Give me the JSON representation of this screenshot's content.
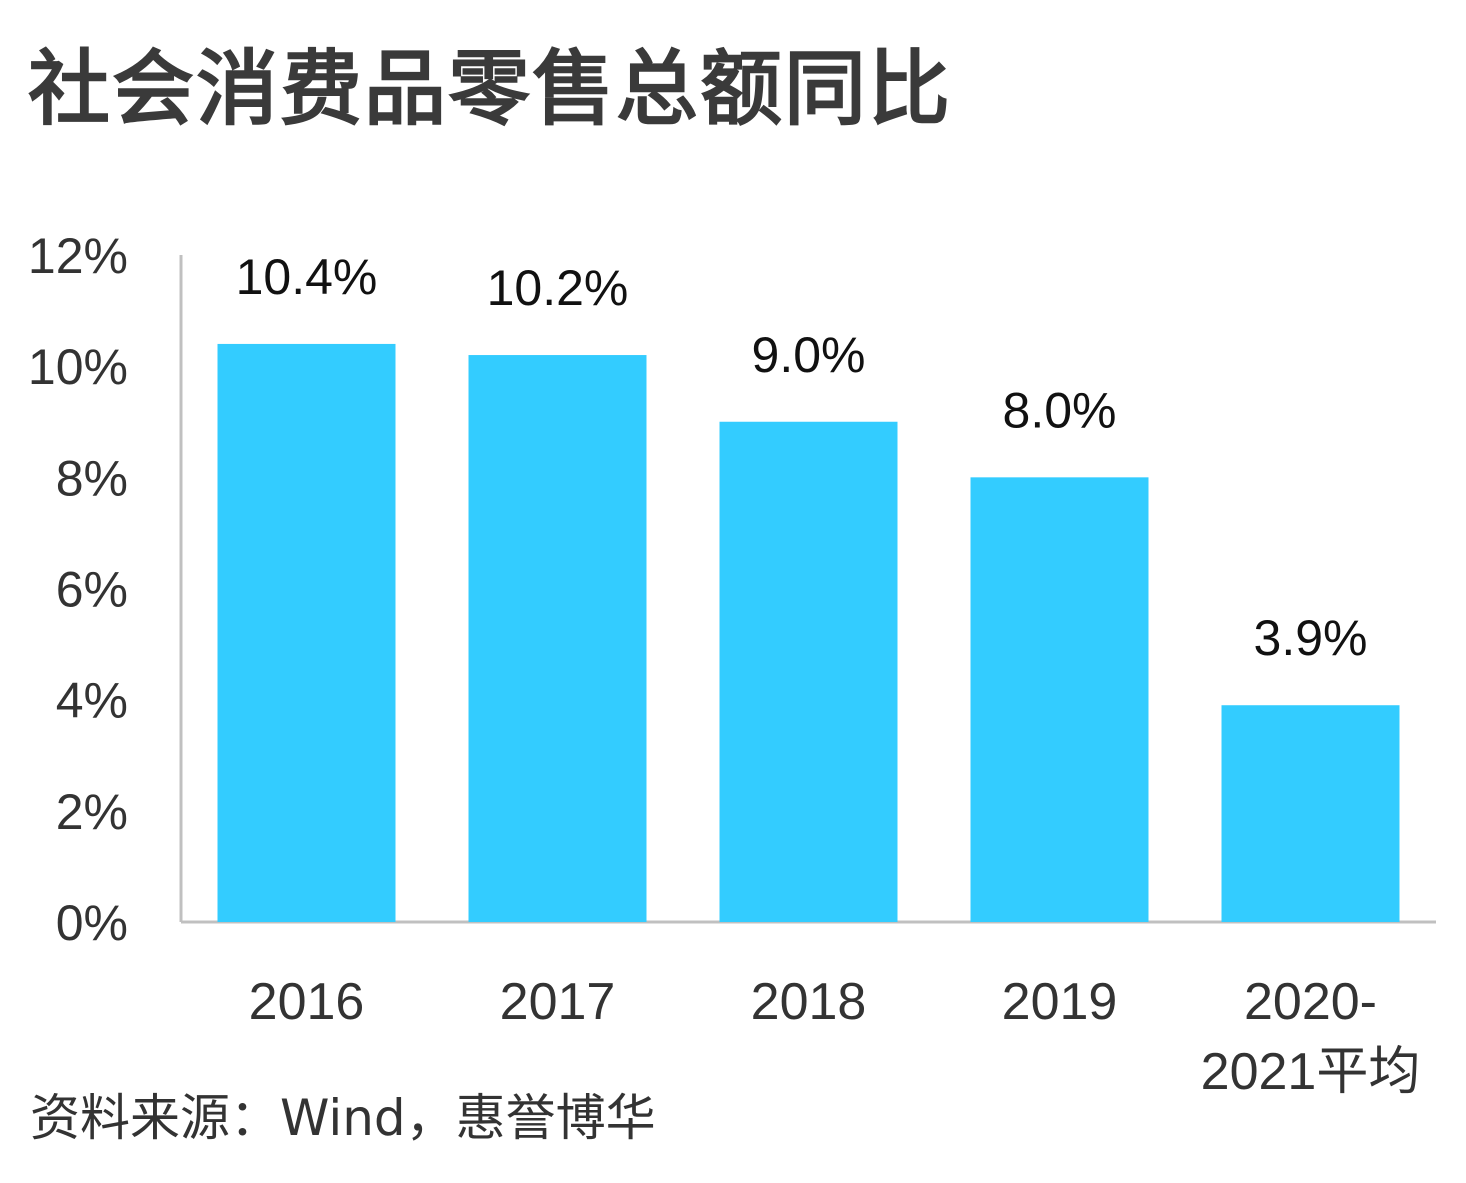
{
  "title": "社会消费品零售总额同比",
  "source": "资料来源：Wind，惠誉博华",
  "chart_data": {
    "type": "bar",
    "title": "社会消费品零售总额同比",
    "categories": [
      [
        "2016"
      ],
      [
        "2017"
      ],
      [
        "2018"
      ],
      [
        "2019"
      ],
      [
        "2020-",
        "2021平均"
      ]
    ],
    "values": [
      10.4,
      10.2,
      9.0,
      8.0,
      3.9
    ],
    "data_labels": [
      "10.4%",
      "10.2%",
      "9.0%",
      "8.0%",
      "3.9%"
    ],
    "y_ticks": [
      0,
      2,
      4,
      6,
      8,
      10,
      12
    ],
    "y_tick_labels": [
      "0%",
      "2%",
      "4%",
      "6%",
      "8%",
      "10%",
      "12%"
    ],
    "ylim": [
      0,
      12
    ],
    "grid": false,
    "legend": "none",
    "bar_color": "#33ccff",
    "axis_color": "#c0c0c0"
  }
}
